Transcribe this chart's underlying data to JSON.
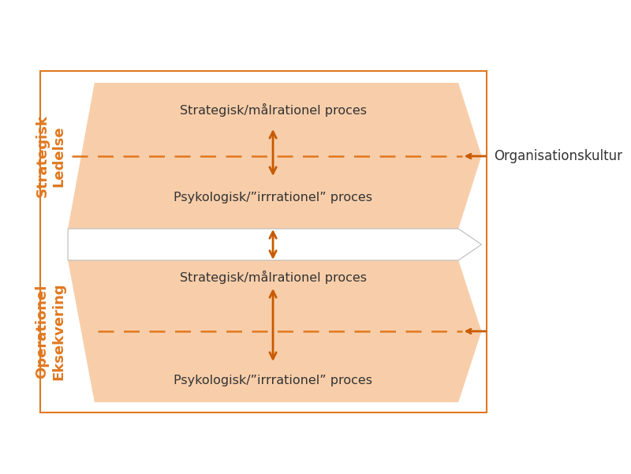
{
  "bg_color": "#ffffff",
  "outer_border_color": "#e07820",
  "fill_color": "#f8ceaa",
  "arrow_color": "#c85a00",
  "text_color_dark": "#333333",
  "text_color_orange": "#e07820",
  "dashed_color": "#e07820",
  "title_outside": "Organisationskultur",
  "label_top_line1": "Strategisk",
  "label_top_line2": "Ledelse",
  "label_bottom_line1": "Operationel",
  "label_bottom_line2": "Eksekvering",
  "text_top_upper": "Strategisk/målrationel proces",
  "text_top_lower": "Psykologisk/”irrrationel” proces",
  "text_bottom_upper": "Strategisk/målrationel proces",
  "text_bottom_lower": "Psykologisk/”irrrationel” proces"
}
